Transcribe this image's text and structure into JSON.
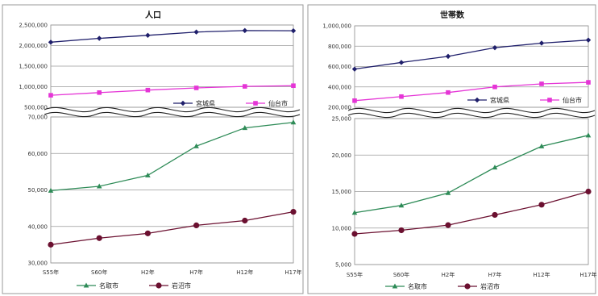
{
  "chart_data": [
    {
      "type": "line",
      "title": "人口",
      "categories": [
        "S55年",
        "S60年",
        "H2年",
        "H7年",
        "H12年",
        "H17年"
      ],
      "broken_axis": true,
      "upper": {
        "ylim": [
          500000,
          2500000
        ],
        "yticks": [
          "2,500,000",
          "2,000,000",
          "1,500,000",
          "1,000,000",
          "500,000"
        ],
        "tick_values": [
          2500000,
          2000000,
          1500000,
          1000000,
          500000
        ],
        "series": [
          {
            "name": "宮城県",
            "color": "#1f1f6b",
            "marker": "diamond",
            "values": [
              2082000,
              2176000,
              2249000,
              2329000,
              2365000,
              2360000
            ]
          },
          {
            "name": "仙台市",
            "color": "#e535d6",
            "marker": "square",
            "values": [
              792000,
              857000,
              918000,
              971000,
              1008000,
              1025000
            ]
          }
        ]
      },
      "lower": {
        "ylim": [
          30000,
          70000
        ],
        "yticks": [
          "70,000",
          "60,000",
          "50,000",
          "40,000",
          "30,000"
        ],
        "tick_values": [
          70000,
          60000,
          50000,
          40000,
          30000
        ],
        "series": [
          {
            "name": "名取市",
            "color": "#2e8b57",
            "marker": "triangle",
            "values": [
              49800,
              51000,
              54000,
              62000,
              67000,
              68500
            ]
          },
          {
            "name": "岩沼市",
            "color": "#6b1030",
            "marker": "circle",
            "values": [
              35000,
              36800,
              38100,
              40300,
              41600,
              44000
            ]
          }
        ]
      }
    },
    {
      "type": "line",
      "title": "世帯数",
      "categories": [
        "S55年",
        "S60年",
        "H2年",
        "H7年",
        "H12年",
        "H17年"
      ],
      "broken_axis": true,
      "upper": {
        "ylim": [
          200000,
          1000000
        ],
        "yticks": [
          "1,000,000",
          "800,000",
          "600,000",
          "400,000",
          "200,000"
        ],
        "tick_values": [
          1000000,
          800000,
          600000,
          400000,
          200000
        ],
        "series": [
          {
            "name": "宮城県",
            "color": "#1f1f6b",
            "marker": "diamond",
            "values": [
              575000,
              640000,
              700000,
              785000,
              830000,
              860000
            ]
          },
          {
            "name": "仙台市",
            "color": "#e535d6",
            "marker": "square",
            "values": [
              265000,
              305000,
              345000,
              400000,
              430000,
              445000
            ]
          }
        ]
      },
      "lower": {
        "ylim": [
          5000,
          25000
        ],
        "yticks": [
          "25,000",
          "20,000",
          "15,000",
          "10,000",
          "5,000"
        ],
        "tick_values": [
          25000,
          20000,
          15000,
          10000,
          5000
        ],
        "series": [
          {
            "name": "名取市",
            "color": "#2e8b57",
            "marker": "triangle",
            "values": [
              12100,
              13100,
              14800,
              18300,
              21200,
              22700
            ]
          },
          {
            "name": "岩沼市",
            "color": "#6b1030",
            "marker": "circle",
            "values": [
              9200,
              9700,
              10400,
              11800,
              13200,
              15000
            ]
          }
        ]
      }
    }
  ]
}
